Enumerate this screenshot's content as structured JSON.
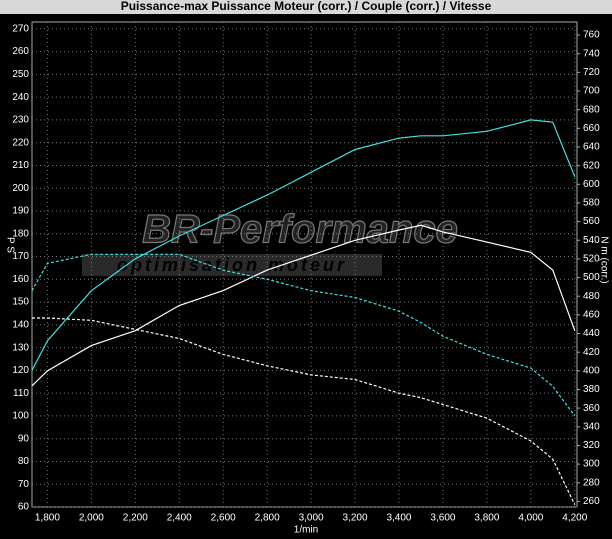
{
  "chart_data": {
    "type": "line",
    "title": "Puissance-max Puissance Moteur (corr.) / Couple (corr.) / Vitesse",
    "ylabel": "P S",
    "y2label": "N m (corr.)",
    "xlabel": "1/min",
    "watermark": "BR-Performance",
    "watermark_sub": "optimisation moteur",
    "grid": true,
    "xlim": [
      1730,
      4210
    ],
    "ylim": [
      60,
      273
    ],
    "y2lim": [
      254,
      774
    ],
    "xticks": [
      {
        "value": 1800,
        "label": "1,800"
      },
      {
        "value": 2000,
        "label": "2,000"
      },
      {
        "value": 2200,
        "label": "2,200"
      },
      {
        "value": 2400,
        "label": "2,400"
      },
      {
        "value": 2600,
        "label": "2,600"
      },
      {
        "value": 2800,
        "label": "2,800"
      },
      {
        "value": 3000,
        "label": "3,000"
      },
      {
        "value": 3200,
        "label": "3,200"
      },
      {
        "value": 3400,
        "label": "3,400"
      },
      {
        "value": 3600,
        "label": "3,600"
      },
      {
        "value": 3800,
        "label": "3,800"
      },
      {
        "value": 4000,
        "label": "4,000"
      },
      {
        "value": 4200,
        "label": "4,200"
      }
    ],
    "yticks": [
      60,
      70,
      80,
      90,
      100,
      110,
      120,
      130,
      140,
      150,
      160,
      170,
      180,
      190,
      200,
      210,
      220,
      230,
      240,
      250,
      260,
      270
    ],
    "y2ticks": [
      260,
      280,
      300,
      320,
      340,
      360,
      380,
      400,
      420,
      440,
      460,
      480,
      500,
      520,
      540,
      560,
      580,
      600,
      620,
      640,
      660,
      680,
      700,
      720,
      740,
      760
    ],
    "x": [
      1730,
      1800,
      2000,
      2200,
      2400,
      2600,
      2800,
      3000,
      3200,
      3400,
      3500,
      3600,
      3800,
      4000,
      4100,
      4200
    ],
    "series": [
      {
        "color": "#40e0e0",
        "style": "solid",
        "axis": "y",
        "values": [
          120,
          133,
          155,
          169,
          179,
          188,
          197,
          207,
          217,
          222,
          223,
          223,
          225,
          230,
          229,
          205
        ]
      },
      {
        "color": "#ffffff",
        "style": "solid",
        "axis": "y2",
        "values": [
          384,
          400,
          427,
          443,
          470,
          486,
          508,
          524,
          540,
          551,
          556,
          549,
          538,
          527,
          508,
          443
        ]
      },
      {
        "color": "#40e0e0",
        "style": "dashed",
        "axis": "y",
        "values": [
          155,
          167,
          171,
          171,
          171,
          164,
          160,
          155,
          152,
          146,
          141,
          135,
          127,
          121,
          113,
          100
        ]
      },
      {
        "color": "#ffffff",
        "style": "dashed",
        "axis": "y",
        "values": [
          143,
          143,
          142,
          138,
          134,
          127,
          122,
          118,
          116,
          110,
          108,
          105,
          99,
          89,
          81,
          61
        ]
      }
    ]
  }
}
